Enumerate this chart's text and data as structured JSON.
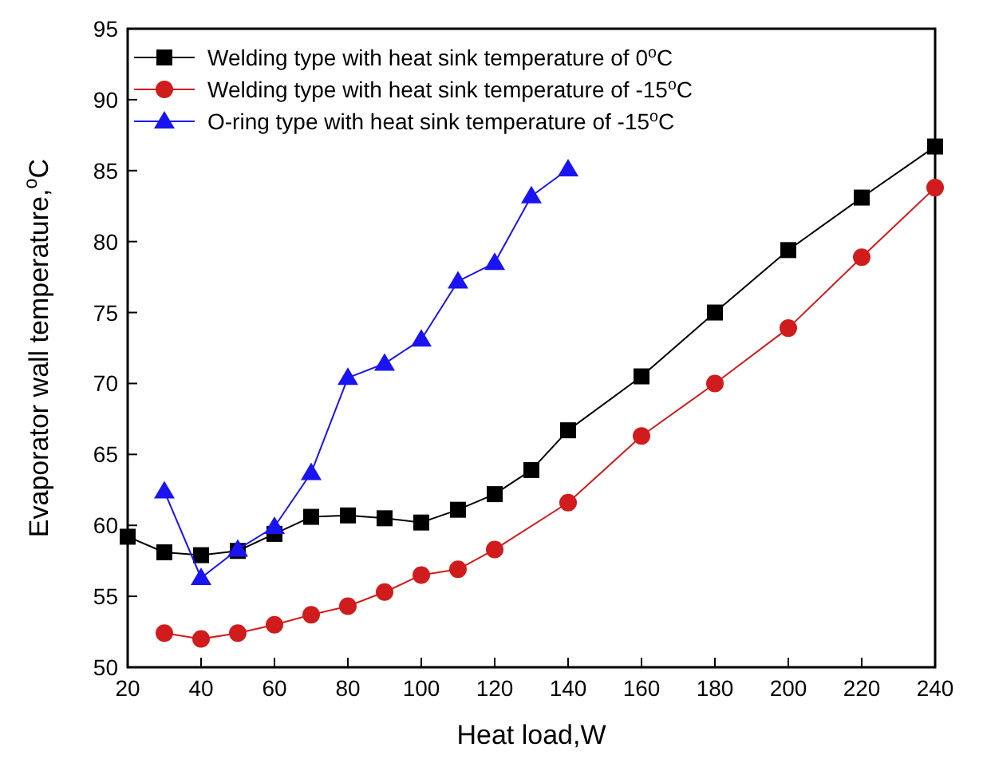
{
  "chart_data": {
    "type": "line",
    "xlabel": "Heat load,W",
    "ylabel": "Evaporator wall temperature,$^{o}$C",
    "xlim": [
      20,
      240
    ],
    "xticks": [
      20,
      40,
      60,
      80,
      100,
      120,
      140,
      160,
      180,
      200,
      220,
      240
    ],
    "ylim": [
      50,
      95
    ],
    "yticks": [
      50,
      55,
      60,
      65,
      70,
      75,
      80,
      85,
      90,
      95
    ],
    "legend": "top left",
    "grid": false,
    "line_style": "solid",
    "series": [
      {
        "name": "Welding type with heat sink temperature of 0$^{o}$C",
        "color": "#000000",
        "marker": "square",
        "x": [
          20,
          30,
          40,
          50,
          60,
          70,
          80,
          90,
          100,
          110,
          120,
          130,
          140,
          160,
          180,
          200,
          220,
          240
        ],
        "values": [
          59.2,
          58.1,
          57.9,
          58.2,
          59.4,
          60.6,
          60.7,
          60.5,
          60.2,
          61.1,
          62.2,
          63.9,
          66.7,
          70.5,
          75.0,
          79.4,
          83.1,
          86.7
        ]
      },
      {
        "name": "Welding type with heat sink temperature of -15$^{o}$C",
        "color": "#d01c1c",
        "marker": "circle",
        "x": [
          30,
          40,
          50,
          60,
          70,
          80,
          90,
          100,
          110,
          120,
          140,
          160,
          180,
          200,
          220,
          240
        ],
        "values": [
          52.4,
          52.0,
          52.4,
          53.0,
          53.7,
          54.3,
          55.3,
          56.5,
          56.9,
          58.3,
          61.6,
          66.3,
          70.0,
          73.9,
          78.9,
          83.8
        ]
      },
      {
        "name": "O-ring type with heat sink temperature of -15$^{o}$C",
        "color": "#1a14f0",
        "marker": "triangle",
        "x": [
          30,
          40,
          50,
          60,
          70,
          80,
          90,
          100,
          110,
          120,
          130,
          140
        ],
        "values": [
          62.4,
          56.3,
          58.3,
          59.9,
          63.7,
          70.4,
          71.4,
          73.1,
          77.2,
          78.5,
          83.2,
          85.1
        ]
      }
    ]
  }
}
